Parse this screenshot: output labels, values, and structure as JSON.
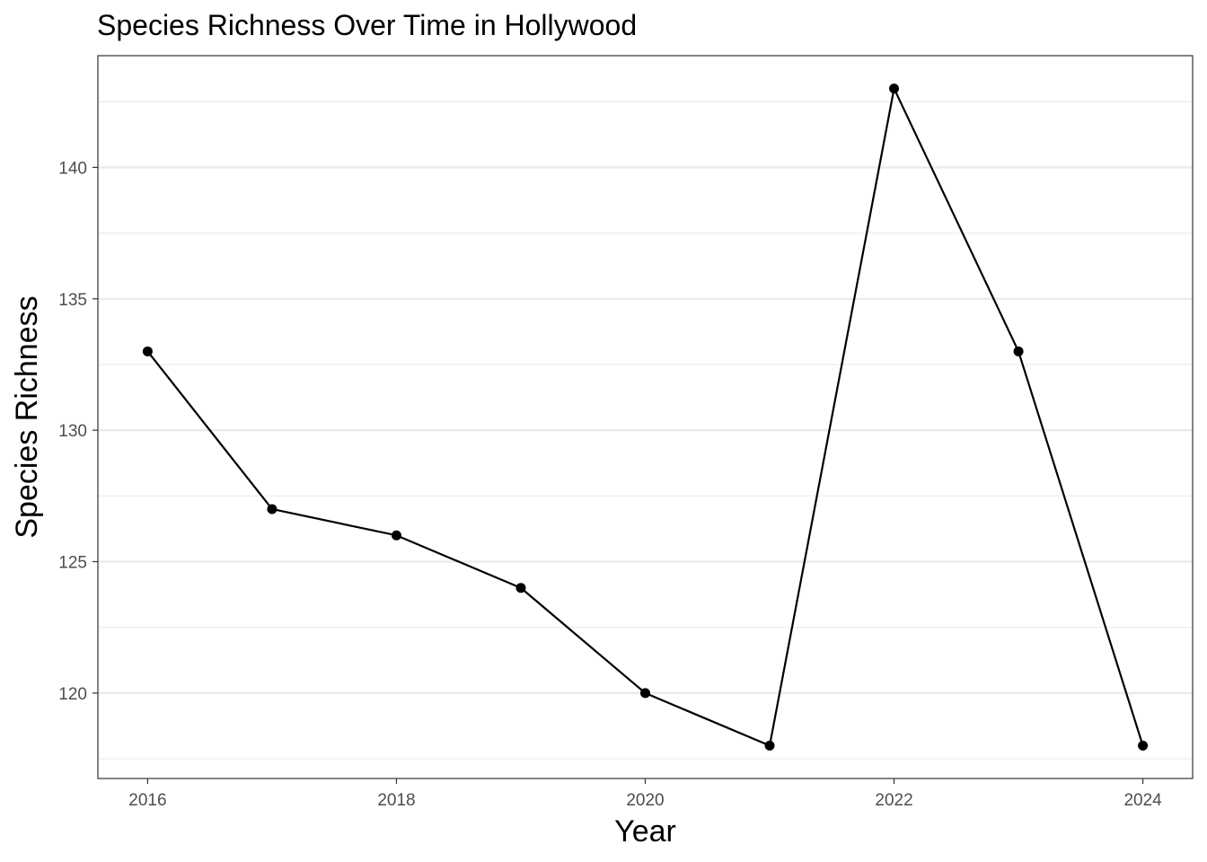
{
  "chart_data": {
    "type": "line",
    "title": "Species Richness Over Time in Hollywood",
    "xlabel": "Year",
    "ylabel": "Species Richness",
    "x": [
      2016,
      2017,
      2018,
      2019,
      2020,
      2021,
      2022,
      2023,
      2024
    ],
    "y": [
      133,
      127,
      126,
      124,
      120,
      118,
      143,
      133,
      118
    ],
    "xlim": [
      2015.6,
      2024.4
    ],
    "ylim": [
      116.75,
      144.25
    ],
    "x_ticks": [
      2016,
      2018,
      2020,
      2022,
      2024
    ],
    "y_ticks": [
      120,
      125,
      130,
      135,
      140
    ],
    "grid": true,
    "line_color": "#000000",
    "point_color": "#000000",
    "grid_color": "#ebebeb"
  }
}
